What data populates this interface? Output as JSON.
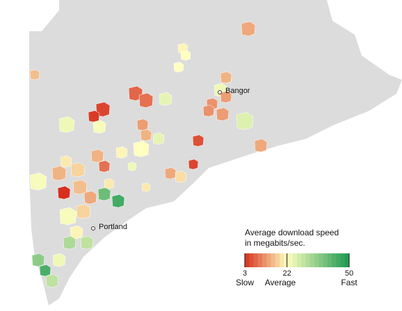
{
  "map": {
    "cities": [
      {
        "name": "Bangor"
      },
      {
        "name": "Portland"
      }
    ],
    "towns": {
      "values": [
        14,
        21,
        22,
        22,
        16,
        15,
        24,
        8,
        9,
        5,
        4,
        25,
        12,
        13,
        12,
        13,
        26,
        24,
        23,
        13,
        15,
        6,
        22,
        21,
        15,
        25,
        20,
        9,
        24,
        23,
        15,
        18,
        14,
        19,
        5,
        3,
        40,
        20,
        16,
        14,
        45,
        23,
        18,
        21,
        32,
        30,
        24,
        36,
        44,
        30,
        20,
        14
      ]
    },
    "legend": {
      "title_lines": [
        "Average download speed",
        "in megabits/sec."
      ],
      "range": [
        3,
        50
      ],
      "ticks": [
        3,
        22,
        50
      ],
      "colors": {
        "low": "#d7301f",
        "mid": "#ffffbf",
        "high": "#1a9850"
      },
      "low_label": "Slow",
      "mid_label": "Average",
      "high_label": "Fast"
    }
  }
}
